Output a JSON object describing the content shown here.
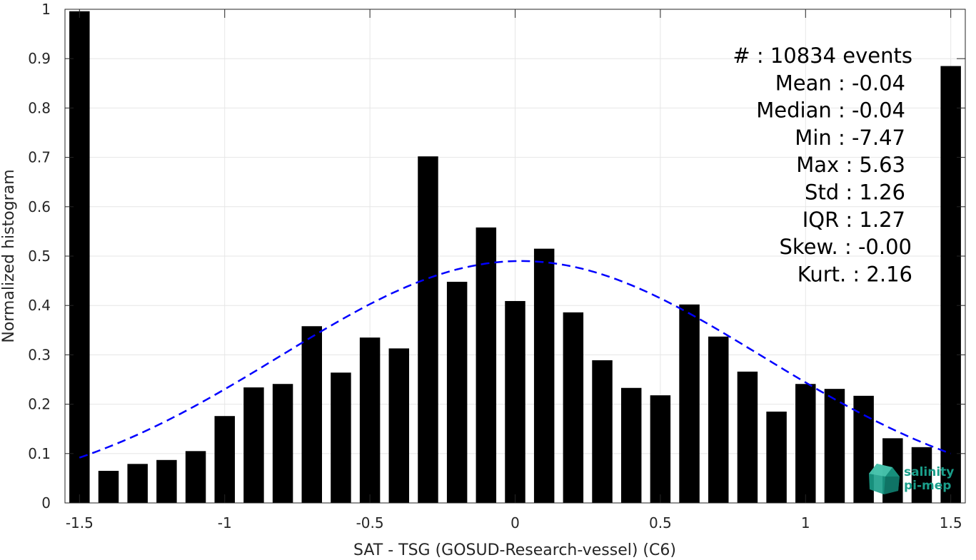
{
  "chart_data": {
    "type": "bar",
    "xlabel": "SAT - TSG (GOSUD-Research-vessel) (C6)",
    "ylabel": "Normalized histogram",
    "xlim": [
      -1.55,
      1.55
    ],
    "ylim": [
      0,
      1
    ],
    "grid": true,
    "x_ticks": [
      -1.5,
      -1,
      -0.5,
      0,
      0.5,
      1,
      1.5
    ],
    "x_tick_labels": [
      "-1.5",
      "-1",
      "-0.5",
      "0",
      "0.5",
      "1",
      "1.5"
    ],
    "y_ticks": [
      0,
      0.1,
      0.2,
      0.3,
      0.4,
      0.5,
      0.6,
      0.7,
      0.8,
      0.9,
      1
    ],
    "y_tick_labels": [
      "0",
      "0.1",
      "0.2",
      "0.3",
      "0.4",
      "0.5",
      "0.6",
      "0.7",
      "0.8",
      "0.9",
      "1"
    ],
    "bar_width": 0.07,
    "bar_color": "#000000",
    "x": [
      -1.5,
      -1.4,
      -1.3,
      -1.2,
      -1.1,
      -1.0,
      -0.9,
      -0.8,
      -0.7,
      -0.6,
      -0.5,
      -0.4,
      -0.3,
      -0.2,
      -0.1,
      0.0,
      0.1,
      0.2,
      0.3,
      0.4,
      0.5,
      0.6,
      0.7,
      0.8,
      0.9,
      1.0,
      1.1,
      1.2,
      1.3,
      1.4,
      1.5
    ],
    "values": [
      0.996,
      0.065,
      0.079,
      0.087,
      0.105,
      0.176,
      0.234,
      0.241,
      0.358,
      0.264,
      0.335,
      0.313,
      0.702,
      0.448,
      0.558,
      0.409,
      0.515,
      0.386,
      0.289,
      0.233,
      0.218,
      0.402,
      0.337,
      0.266,
      0.185,
      0.241,
      0.231,
      0.217,
      0.131,
      0.113,
      0.885
    ],
    "fit_curve": {
      "style": "dashed",
      "color": "#0000ff",
      "mean": 0.02,
      "std": 0.83,
      "peak": 0.49,
      "x_range": [
        -1.5,
        1.5
      ]
    },
    "stats": [
      "#  : 10834 events",
      "Mean : -0.04",
      "Median : -0.04",
      "Min : -7.47",
      "Max : 5.63",
      "Std : 1.26",
      "IQR : 1.27",
      "Skew. : -0.00",
      "Kurt. : 2.16"
    ]
  },
  "logo": {
    "line1": "salinity",
    "line2": "pi-mep",
    "color": "#1a9e8a"
  }
}
